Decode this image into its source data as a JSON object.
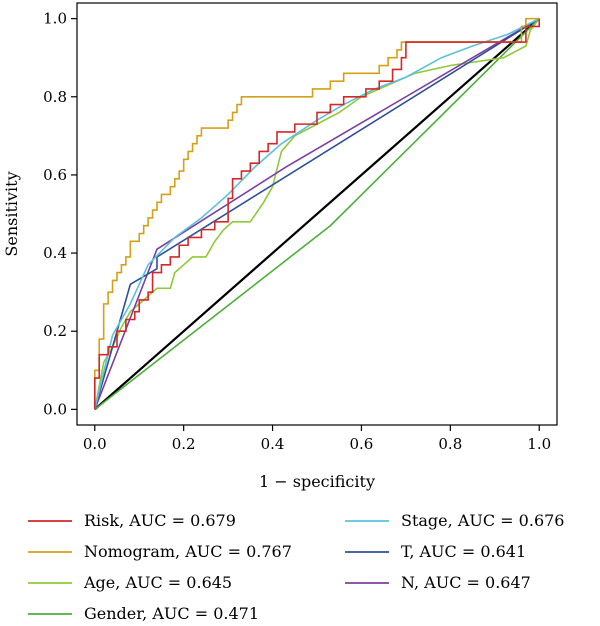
{
  "chart_data": {
    "type": "line",
    "title": "",
    "xlabel": "1 − specificity",
    "ylabel": "Sensitivity",
    "xlim": [
      -0.04,
      1.04
    ],
    "ylim": [
      -0.04,
      1.04
    ],
    "xticks": [
      0.0,
      0.2,
      0.4,
      0.6,
      0.8,
      1.0
    ],
    "yticks": [
      0.0,
      0.2,
      0.4,
      0.6,
      0.8,
      1.0
    ],
    "xtick_labels": [
      "0.0",
      "0.2",
      "0.4",
      "0.6",
      "0.8",
      "1.0"
    ],
    "ytick_labels": [
      "0.0",
      "0.2",
      "0.4",
      "0.6",
      "0.8",
      "1.0"
    ],
    "grid": false,
    "legend_position": "bottom",
    "reference_line": {
      "x": [
        0,
        1
      ],
      "y": [
        0,
        1
      ],
      "color": "#000000"
    },
    "series": [
      {
        "name": "Risk, AUC = 0.679",
        "color": "#d62728",
        "step": true,
        "points": [
          [
            0,
            0
          ],
          [
            0,
            0.08
          ],
          [
            0.01,
            0.08
          ],
          [
            0.01,
            0.14
          ],
          [
            0.03,
            0.14
          ],
          [
            0.03,
            0.16
          ],
          [
            0.05,
            0.16
          ],
          [
            0.05,
            0.2
          ],
          [
            0.07,
            0.2
          ],
          [
            0.07,
            0.23
          ],
          [
            0.09,
            0.23
          ],
          [
            0.09,
            0.25
          ],
          [
            0.1,
            0.25
          ],
          [
            0.1,
            0.28
          ],
          [
            0.12,
            0.28
          ],
          [
            0.12,
            0.3
          ],
          [
            0.13,
            0.3
          ],
          [
            0.13,
            0.35
          ],
          [
            0.15,
            0.35
          ],
          [
            0.15,
            0.37
          ],
          [
            0.17,
            0.37
          ],
          [
            0.17,
            0.39
          ],
          [
            0.19,
            0.39
          ],
          [
            0.19,
            0.42
          ],
          [
            0.21,
            0.42
          ],
          [
            0.21,
            0.44
          ],
          [
            0.24,
            0.44
          ],
          [
            0.24,
            0.46
          ],
          [
            0.27,
            0.46
          ],
          [
            0.27,
            0.48
          ],
          [
            0.3,
            0.48
          ],
          [
            0.3,
            0.54
          ],
          [
            0.31,
            0.54
          ],
          [
            0.31,
            0.59
          ],
          [
            0.33,
            0.59
          ],
          [
            0.33,
            0.61
          ],
          [
            0.35,
            0.61
          ],
          [
            0.35,
            0.63
          ],
          [
            0.37,
            0.63
          ],
          [
            0.37,
            0.66
          ],
          [
            0.39,
            0.66
          ],
          [
            0.39,
            0.68
          ],
          [
            0.41,
            0.68
          ],
          [
            0.41,
            0.71
          ],
          [
            0.45,
            0.71
          ],
          [
            0.45,
            0.73
          ],
          [
            0.5,
            0.73
          ],
          [
            0.5,
            0.76
          ],
          [
            0.53,
            0.76
          ],
          [
            0.53,
            0.78
          ],
          [
            0.56,
            0.78
          ],
          [
            0.56,
            0.8
          ],
          [
            0.61,
            0.8
          ],
          [
            0.61,
            0.82
          ],
          [
            0.64,
            0.82
          ],
          [
            0.64,
            0.84
          ],
          [
            0.67,
            0.84
          ],
          [
            0.67,
            0.87
          ],
          [
            0.69,
            0.87
          ],
          [
            0.69,
            0.9
          ],
          [
            0.7,
            0.9
          ],
          [
            0.7,
            0.94
          ],
          [
            0.76,
            0.94
          ],
          [
            0.76,
            0.94
          ],
          [
            0.97,
            0.94
          ],
          [
            0.97,
            0.98
          ],
          [
            1,
            0.98
          ],
          [
            1,
            1
          ]
        ]
      },
      {
        "name": "Nomogram, AUC = 0.767",
        "color": "#d4a017",
        "step": true,
        "points": [
          [
            0,
            0
          ],
          [
            0,
            0.1
          ],
          [
            0.01,
            0.1
          ],
          [
            0.01,
            0.18
          ],
          [
            0.02,
            0.18
          ],
          [
            0.02,
            0.23
          ],
          [
            0.02,
            0.27
          ],
          [
            0.03,
            0.27
          ],
          [
            0.03,
            0.3
          ],
          [
            0.04,
            0.3
          ],
          [
            0.04,
            0.33
          ],
          [
            0.05,
            0.33
          ],
          [
            0.05,
            0.35
          ],
          [
            0.06,
            0.35
          ],
          [
            0.06,
            0.37
          ],
          [
            0.07,
            0.37
          ],
          [
            0.07,
            0.39
          ],
          [
            0.08,
            0.39
          ],
          [
            0.08,
            0.43
          ],
          [
            0.1,
            0.43
          ],
          [
            0.1,
            0.45
          ],
          [
            0.11,
            0.45
          ],
          [
            0.11,
            0.47
          ],
          [
            0.12,
            0.47
          ],
          [
            0.12,
            0.49
          ],
          [
            0.13,
            0.49
          ],
          [
            0.13,
            0.51
          ],
          [
            0.14,
            0.51
          ],
          [
            0.14,
            0.53
          ],
          [
            0.15,
            0.53
          ],
          [
            0.15,
            0.55
          ],
          [
            0.17,
            0.55
          ],
          [
            0.17,
            0.57
          ],
          [
            0.18,
            0.57
          ],
          [
            0.18,
            0.59
          ],
          [
            0.19,
            0.59
          ],
          [
            0.19,
            0.61
          ],
          [
            0.2,
            0.61
          ],
          [
            0.2,
            0.64
          ],
          [
            0.21,
            0.64
          ],
          [
            0.21,
            0.66
          ],
          [
            0.22,
            0.66
          ],
          [
            0.22,
            0.68
          ],
          [
            0.23,
            0.68
          ],
          [
            0.23,
            0.7
          ],
          [
            0.24,
            0.7
          ],
          [
            0.24,
            0.72
          ],
          [
            0.27,
            0.72
          ],
          [
            0.27,
            0.72
          ],
          [
            0.3,
            0.72
          ],
          [
            0.3,
            0.74
          ],
          [
            0.31,
            0.74
          ],
          [
            0.31,
            0.76
          ],
          [
            0.32,
            0.76
          ],
          [
            0.32,
            0.78
          ],
          [
            0.33,
            0.78
          ],
          [
            0.33,
            0.8
          ],
          [
            0.42,
            0.8
          ],
          [
            0.42,
            0.8
          ],
          [
            0.49,
            0.8
          ],
          [
            0.49,
            0.82
          ],
          [
            0.53,
            0.82
          ],
          [
            0.53,
            0.84
          ],
          [
            0.56,
            0.84
          ],
          [
            0.56,
            0.86
          ],
          [
            0.64,
            0.86
          ],
          [
            0.64,
            0.88
          ],
          [
            0.66,
            0.88
          ],
          [
            0.66,
            0.9
          ],
          [
            0.68,
            0.9
          ],
          [
            0.68,
            0.92
          ],
          [
            0.69,
            0.92
          ],
          [
            0.69,
            0.94
          ],
          [
            0.96,
            0.94
          ],
          [
            0.96,
            0.98
          ],
          [
            0.97,
            0.98
          ],
          [
            0.97,
            1
          ],
          [
            1,
            1
          ]
        ]
      },
      {
        "name": "Age, AUC = 0.645",
        "color": "#8fc93a",
        "step": false,
        "points": [
          [
            0,
            0
          ],
          [
            0.02,
            0.12
          ],
          [
            0.04,
            0.16
          ],
          [
            0.06,
            0.21
          ],
          [
            0.08,
            0.25
          ],
          [
            0.1,
            0.27
          ],
          [
            0.12,
            0.29
          ],
          [
            0.14,
            0.31
          ],
          [
            0.17,
            0.31
          ],
          [
            0.18,
            0.35
          ],
          [
            0.2,
            0.37
          ],
          [
            0.22,
            0.39
          ],
          [
            0.25,
            0.39
          ],
          [
            0.27,
            0.43
          ],
          [
            0.29,
            0.46
          ],
          [
            0.31,
            0.48
          ],
          [
            0.35,
            0.48
          ],
          [
            0.38,
            0.53
          ],
          [
            0.4,
            0.57
          ],
          [
            0.42,
            0.66
          ],
          [
            0.45,
            0.7
          ],
          [
            0.5,
            0.73
          ],
          [
            0.55,
            0.76
          ],
          [
            0.6,
            0.8
          ],
          [
            0.66,
            0.83
          ],
          [
            0.72,
            0.86
          ],
          [
            0.8,
            0.88
          ],
          [
            0.86,
            0.89
          ],
          [
            0.92,
            0.9
          ],
          [
            0.97,
            0.93
          ],
          [
            0.98,
            0.97
          ],
          [
            1,
            1
          ]
        ]
      },
      {
        "name": "Gender, AUC = 0.471",
        "color": "#4caf3a",
        "step": false,
        "points": [
          [
            0,
            0
          ],
          [
            0.53,
            0.47
          ],
          [
            1,
            1
          ]
        ]
      },
      {
        "name": "Stage, AUC = 0.676",
        "color": "#5bc0de",
        "step": false,
        "points": [
          [
            0,
            0
          ],
          [
            0.04,
            0.19
          ],
          [
            0.08,
            0.27
          ],
          [
            0.12,
            0.37
          ],
          [
            0.18,
            0.44
          ],
          [
            0.24,
            0.49
          ],
          [
            0.3,
            0.55
          ],
          [
            0.36,
            0.62
          ],
          [
            0.42,
            0.68
          ],
          [
            0.5,
            0.74
          ],
          [
            0.56,
            0.78
          ],
          [
            0.63,
            0.82
          ],
          [
            0.7,
            0.85
          ],
          [
            0.78,
            0.9
          ],
          [
            0.85,
            0.93
          ],
          [
            0.93,
            0.96
          ],
          [
            1,
            1
          ]
        ]
      },
      {
        "name": "T, AUC = 0.641",
        "color": "#2f4f9a",
        "step": false,
        "points": [
          [
            0,
            0
          ],
          [
            0.08,
            0.32
          ],
          [
            0.14,
            0.36
          ],
          [
            0.14,
            0.39
          ],
          [
            1,
            1
          ]
        ]
      },
      {
        "name": "N, AUC = 0.647",
        "color": "#7b3fa0",
        "step": false,
        "points": [
          [
            0,
            0
          ],
          [
            0.14,
            0.41
          ],
          [
            0.43,
            0.62
          ],
          [
            1,
            1
          ]
        ]
      }
    ],
    "legend": {
      "columns": [
        [
          "Risk, AUC = 0.679",
          "Nomogram, AUC = 0.767",
          "Age, AUC = 0.645",
          "Gender, AUC = 0.471"
        ],
        [
          "Stage, AUC = 0.676",
          "T, AUC = 0.641",
          "N, AUC = 0.647"
        ]
      ]
    }
  }
}
